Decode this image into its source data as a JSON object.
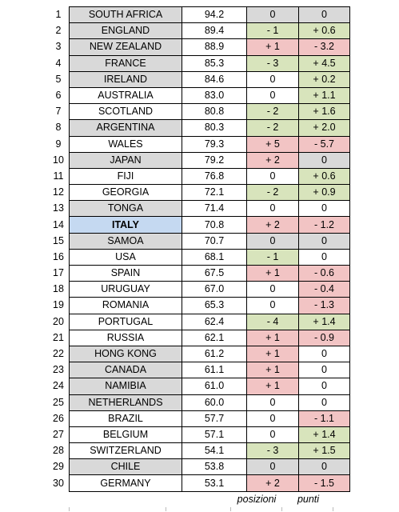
{
  "columns_footer": {
    "positions": "posizioni",
    "points": "punti"
  },
  "colors": {
    "grey": "#d9d9d9",
    "highlight": "#c5d9f1",
    "positive": "#f2c4c4",
    "negative": "#d8e4bc"
  },
  "rows": [
    {
      "rank": "1",
      "team": "SOUTH AFRICA",
      "points": "94.2",
      "pos_change": "0",
      "pts_change": "0",
      "team_style": "grey",
      "pos_style": "grey",
      "pts_style": "grey"
    },
    {
      "rank": "2",
      "team": "ENGLAND",
      "points": "89.4",
      "pos_change": "- 1",
      "pts_change": "+ 0.6",
      "team_style": "grey",
      "pos_style": "green",
      "pts_style": "green"
    },
    {
      "rank": "3",
      "team": "NEW ZEALAND",
      "points": "88.9",
      "pos_change": "+ 1",
      "pts_change": "- 3.2",
      "team_style": "grey",
      "pos_style": "red",
      "pts_style": "red"
    },
    {
      "rank": "4",
      "team": "FRANCE",
      "points": "85.3",
      "pos_change": "- 3",
      "pts_change": "+ 4.5",
      "team_style": "grey",
      "pos_style": "green",
      "pts_style": "green"
    },
    {
      "rank": "5",
      "team": "IRELAND",
      "points": "84.6",
      "pos_change": "0",
      "pts_change": "+ 0.2",
      "team_style": "grey",
      "pos_style": "",
      "pts_style": "green"
    },
    {
      "rank": "6",
      "team": "AUSTRALIA",
      "points": "83.0",
      "pos_change": "0",
      "pts_change": "+ 1.1",
      "team_style": "",
      "pos_style": "",
      "pts_style": "green"
    },
    {
      "rank": "7",
      "team": "SCOTLAND",
      "points": "80.8",
      "pos_change": "- 2",
      "pts_change": "+ 1.6",
      "team_style": "",
      "pos_style": "green",
      "pts_style": "green"
    },
    {
      "rank": "8",
      "team": "ARGENTINA",
      "points": "80.3",
      "pos_change": "- 2",
      "pts_change": "+ 2.0",
      "team_style": "grey",
      "pos_style": "green",
      "pts_style": "green"
    },
    {
      "rank": "9",
      "team": "WALES",
      "points": "79.3",
      "pos_change": "+ 5",
      "pts_change": "- 5.7",
      "team_style": "",
      "pos_style": "red",
      "pts_style": "red"
    },
    {
      "rank": "10",
      "team": "JAPAN",
      "points": "79.2",
      "pos_change": "+ 2",
      "pts_change": "0",
      "team_style": "grey",
      "pos_style": "red",
      "pts_style": "grey"
    },
    {
      "rank": "11",
      "team": "FIJI",
      "points": "76.8",
      "pos_change": "0",
      "pts_change": "+ 0.6",
      "team_style": "",
      "pos_style": "",
      "pts_style": "green"
    },
    {
      "rank": "12",
      "team": "GEORGIA",
      "points": "72.1",
      "pos_change": "- 2",
      "pts_change": "+ 0.9",
      "team_style": "",
      "pos_style": "green",
      "pts_style": "green"
    },
    {
      "rank": "13",
      "team": "TONGA",
      "points": "71.4",
      "pos_change": "0",
      "pts_change": "0",
      "team_style": "grey",
      "pos_style": "",
      "pts_style": ""
    },
    {
      "rank": "14",
      "team": "ITALY",
      "points": "70.8",
      "pos_change": "+ 2",
      "pts_change": "- 1.2",
      "team_style": "hl",
      "pos_style": "red",
      "pts_style": "red"
    },
    {
      "rank": "15",
      "team": "SAMOA",
      "points": "70.7",
      "pos_change": "0",
      "pts_change": "0",
      "team_style": "grey",
      "pos_style": "grey",
      "pts_style": "grey"
    },
    {
      "rank": "16",
      "team": "USA",
      "points": "68.1",
      "pos_change": "- 1",
      "pts_change": "0",
      "team_style": "",
      "pos_style": "green",
      "pts_style": ""
    },
    {
      "rank": "17",
      "team": "SPAIN",
      "points": "67.5",
      "pos_change": "+ 1",
      "pts_change": "- 0.6",
      "team_style": "",
      "pos_style": "red",
      "pts_style": "red"
    },
    {
      "rank": "18",
      "team": "URUGUAY",
      "points": "67.0",
      "pos_change": "0",
      "pts_change": "- 0.4",
      "team_style": "",
      "pos_style": "",
      "pts_style": "red"
    },
    {
      "rank": "19",
      "team": "ROMANIA",
      "points": "65.3",
      "pos_change": "0",
      "pts_change": "- 1.3",
      "team_style": "",
      "pos_style": "",
      "pts_style": "red"
    },
    {
      "rank": "20",
      "team": "PORTUGAL",
      "points": "62.4",
      "pos_change": "- 4",
      "pts_change": "+ 1.4",
      "team_style": "",
      "pos_style": "green",
      "pts_style": "green"
    },
    {
      "rank": "21",
      "team": "RUSSIA",
      "points": "62.1",
      "pos_change": "+ 1",
      "pts_change": "- 0.9",
      "team_style": "",
      "pos_style": "red",
      "pts_style": "red"
    },
    {
      "rank": "22",
      "team": "HONG KONG",
      "points": "61.2",
      "pos_change": "+ 1",
      "pts_change": "0",
      "team_style": "grey",
      "pos_style": "red",
      "pts_style": ""
    },
    {
      "rank": "23",
      "team": "CANADA",
      "points": "61.1",
      "pos_change": "+ 1",
      "pts_change": "0",
      "team_style": "grey",
      "pos_style": "red",
      "pts_style": ""
    },
    {
      "rank": "24",
      "team": "NAMIBIA",
      "points": "61.0",
      "pos_change": "+ 1",
      "pts_change": "0",
      "team_style": "grey",
      "pos_style": "red",
      "pts_style": ""
    },
    {
      "rank": "25",
      "team": "NETHERLANDS",
      "points": "60.0",
      "pos_change": "0",
      "pts_change": "0",
      "team_style": "grey",
      "pos_style": "",
      "pts_style": ""
    },
    {
      "rank": "26",
      "team": "BRAZIL",
      "points": "57.7",
      "pos_change": "0",
      "pts_change": "- 1.1",
      "team_style": "",
      "pos_style": "",
      "pts_style": "red"
    },
    {
      "rank": "27",
      "team": "BELGIUM",
      "points": "57.1",
      "pos_change": "0",
      "pts_change": "+ 1.4",
      "team_style": "",
      "pos_style": "",
      "pts_style": "green"
    },
    {
      "rank": "28",
      "team": "SWITZERLAND",
      "points": "54.1",
      "pos_change": "- 3",
      "pts_change": "+ 1.5",
      "team_style": "",
      "pos_style": "green",
      "pts_style": "green"
    },
    {
      "rank": "29",
      "team": "CHILE",
      "points": "53.8",
      "pos_change": "0",
      "pts_change": "0",
      "team_style": "grey",
      "pos_style": "grey",
      "pts_style": "grey"
    },
    {
      "rank": "30",
      "team": "GERMANY",
      "points": "53.1",
      "pos_change": "+ 2",
      "pts_change": "- 1.5",
      "team_style": "",
      "pos_style": "red",
      "pts_style": "red"
    }
  ]
}
